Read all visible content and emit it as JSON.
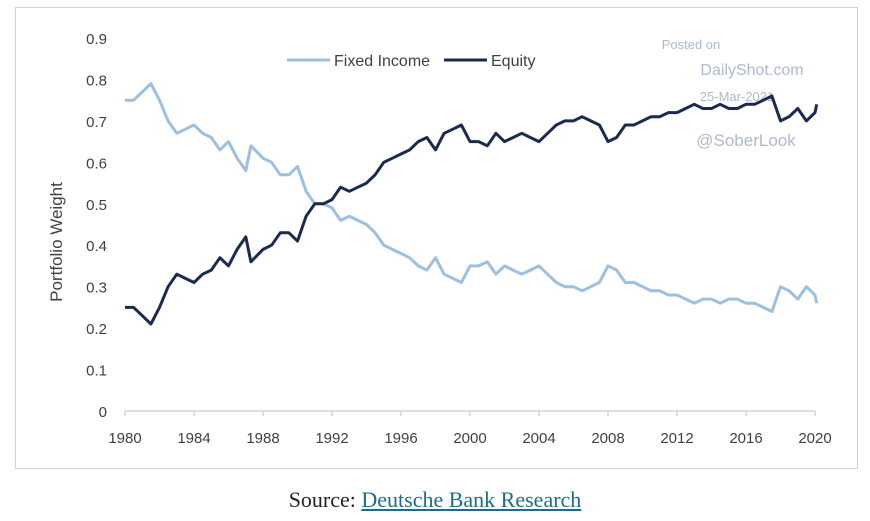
{
  "chart_data": {
    "type": "line",
    "title": "",
    "xlabel": "",
    "ylabel": "Portfolio Weight",
    "xlim": [
      1980,
      2020
    ],
    "ylim": [
      0,
      0.9
    ],
    "x_ticks": [
      "1980",
      "1984",
      "1988",
      "1992",
      "1996",
      "2000",
      "2004",
      "2008",
      "2012",
      "2016",
      "2020"
    ],
    "y_ticks": [
      "0",
      "0.1",
      "0.2",
      "0.3",
      "0.4",
      "0.5",
      "0.6",
      "0.7",
      "0.8",
      "0.9"
    ],
    "grid": false,
    "legend_position": "top-center",
    "series": [
      {
        "name": "Fixed Income",
        "color": "#9dbfe0",
        "points": [
          [
            1980,
            0.75
          ],
          [
            1980.5,
            0.75
          ],
          [
            1981,
            0.77
          ],
          [
            1981.5,
            0.79
          ],
          [
            1982,
            0.75
          ],
          [
            1982.5,
            0.7
          ],
          [
            1983,
            0.67
          ],
          [
            1983.5,
            0.68
          ],
          [
            1984,
            0.69
          ],
          [
            1984.5,
            0.67
          ],
          [
            1985,
            0.66
          ],
          [
            1985.5,
            0.63
          ],
          [
            1986,
            0.65
          ],
          [
            1986.5,
            0.61
          ],
          [
            1987,
            0.58
          ],
          [
            1987.3,
            0.64
          ],
          [
            1988,
            0.61
          ],
          [
            1988.5,
            0.6
          ],
          [
            1989,
            0.57
          ],
          [
            1989.5,
            0.57
          ],
          [
            1990,
            0.59
          ],
          [
            1990.5,
            0.53
          ],
          [
            1991,
            0.5
          ],
          [
            1991.5,
            0.5
          ],
          [
            1992,
            0.49
          ],
          [
            1992.5,
            0.46
          ],
          [
            1993,
            0.47
          ],
          [
            1993.5,
            0.46
          ],
          [
            1994,
            0.45
          ],
          [
            1994.5,
            0.43
          ],
          [
            1995,
            0.4
          ],
          [
            1995.5,
            0.39
          ],
          [
            1996,
            0.38
          ],
          [
            1996.5,
            0.37
          ],
          [
            1997,
            0.35
          ],
          [
            1997.5,
            0.34
          ],
          [
            1998,
            0.37
          ],
          [
            1998.5,
            0.33
          ],
          [
            1999,
            0.32
          ],
          [
            1999.5,
            0.31
          ],
          [
            2000,
            0.35
          ],
          [
            2000.5,
            0.35
          ],
          [
            2001,
            0.36
          ],
          [
            2001.5,
            0.33
          ],
          [
            2002,
            0.35
          ],
          [
            2002.5,
            0.34
          ],
          [
            2003,
            0.33
          ],
          [
            2003.5,
            0.34
          ],
          [
            2004,
            0.35
          ],
          [
            2004.5,
            0.33
          ],
          [
            2005,
            0.31
          ],
          [
            2005.5,
            0.3
          ],
          [
            2006,
            0.3
          ],
          [
            2006.5,
            0.29
          ],
          [
            2007,
            0.3
          ],
          [
            2007.5,
            0.31
          ],
          [
            2008,
            0.35
          ],
          [
            2008.5,
            0.34
          ],
          [
            2009,
            0.31
          ],
          [
            2009.5,
            0.31
          ],
          [
            2010,
            0.3
          ],
          [
            2010.5,
            0.29
          ],
          [
            2011,
            0.29
          ],
          [
            2011.5,
            0.28
          ],
          [
            2012,
            0.28
          ],
          [
            2012.5,
            0.27
          ],
          [
            2013,
            0.26
          ],
          [
            2013.5,
            0.27
          ],
          [
            2014,
            0.27
          ],
          [
            2014.5,
            0.26
          ],
          [
            2015,
            0.27
          ],
          [
            2015.5,
            0.27
          ],
          [
            2016,
            0.26
          ],
          [
            2016.5,
            0.26
          ],
          [
            2017,
            0.25
          ],
          [
            2017.5,
            0.24
          ],
          [
            2018,
            0.3
          ],
          [
            2018.5,
            0.29
          ],
          [
            2019,
            0.27
          ],
          [
            2019.5,
            0.3
          ],
          [
            2020,
            0.28
          ],
          [
            2020.1,
            0.26
          ]
        ]
      },
      {
        "name": "Equity",
        "color": "#1b2a4e",
        "points": [
          [
            1980,
            0.25
          ],
          [
            1980.5,
            0.25
          ],
          [
            1981,
            0.23
          ],
          [
            1981.5,
            0.21
          ],
          [
            1982,
            0.25
          ],
          [
            1982.5,
            0.3
          ],
          [
            1983,
            0.33
          ],
          [
            1983.5,
            0.32
          ],
          [
            1984,
            0.31
          ],
          [
            1984.5,
            0.33
          ],
          [
            1985,
            0.34
          ],
          [
            1985.5,
            0.37
          ],
          [
            1986,
            0.35
          ],
          [
            1986.5,
            0.39
          ],
          [
            1987,
            0.42
          ],
          [
            1987.3,
            0.36
          ],
          [
            1988,
            0.39
          ],
          [
            1988.5,
            0.4
          ],
          [
            1989,
            0.43
          ],
          [
            1989.5,
            0.43
          ],
          [
            1990,
            0.41
          ],
          [
            1990.5,
            0.47
          ],
          [
            1991,
            0.5
          ],
          [
            1991.5,
            0.5
          ],
          [
            1992,
            0.51
          ],
          [
            1992.5,
            0.54
          ],
          [
            1993,
            0.53
          ],
          [
            1993.5,
            0.54
          ],
          [
            1994,
            0.55
          ],
          [
            1994.5,
            0.57
          ],
          [
            1995,
            0.6
          ],
          [
            1995.5,
            0.61
          ],
          [
            1996,
            0.62
          ],
          [
            1996.5,
            0.63
          ],
          [
            1997,
            0.65
          ],
          [
            1997.5,
            0.66
          ],
          [
            1998,
            0.63
          ],
          [
            1998.5,
            0.67
          ],
          [
            1999,
            0.68
          ],
          [
            1999.5,
            0.69
          ],
          [
            2000,
            0.65
          ],
          [
            2000.5,
            0.65
          ],
          [
            2001,
            0.64
          ],
          [
            2001.5,
            0.67
          ],
          [
            2002,
            0.65
          ],
          [
            2002.5,
            0.66
          ],
          [
            2003,
            0.67
          ],
          [
            2003.5,
            0.66
          ],
          [
            2004,
            0.65
          ],
          [
            2004.5,
            0.67
          ],
          [
            2005,
            0.69
          ],
          [
            2005.5,
            0.7
          ],
          [
            2006,
            0.7
          ],
          [
            2006.5,
            0.71
          ],
          [
            2007,
            0.7
          ],
          [
            2007.5,
            0.69
          ],
          [
            2008,
            0.65
          ],
          [
            2008.5,
            0.66
          ],
          [
            2009,
            0.69
          ],
          [
            2009.5,
            0.69
          ],
          [
            2010,
            0.7
          ],
          [
            2010.5,
            0.71
          ],
          [
            2011,
            0.71
          ],
          [
            2011.5,
            0.72
          ],
          [
            2012,
            0.72
          ],
          [
            2012.5,
            0.73
          ],
          [
            2013,
            0.74
          ],
          [
            2013.5,
            0.73
          ],
          [
            2014,
            0.73
          ],
          [
            2014.5,
            0.74
          ],
          [
            2015,
            0.73
          ],
          [
            2015.5,
            0.73
          ],
          [
            2016,
            0.74
          ],
          [
            2016.5,
            0.74
          ],
          [
            2017,
            0.75
          ],
          [
            2017.5,
            0.76
          ],
          [
            2018,
            0.7
          ],
          [
            2018.5,
            0.71
          ],
          [
            2019,
            0.73
          ],
          [
            2019.5,
            0.7
          ],
          [
            2020,
            0.72
          ],
          [
            2020.1,
            0.74
          ]
        ]
      }
    ]
  },
  "watermark": {
    "line1": "Posted on",
    "line2": "DailyShot.com",
    "line3": "25-Mar-2021",
    "line4": "@SoberLook"
  },
  "source": {
    "prefix": "Source: ",
    "link_text": "Deutsche Bank Research"
  },
  "colors": {
    "axis": "#bfbfbf",
    "tick_text": "#404040"
  }
}
